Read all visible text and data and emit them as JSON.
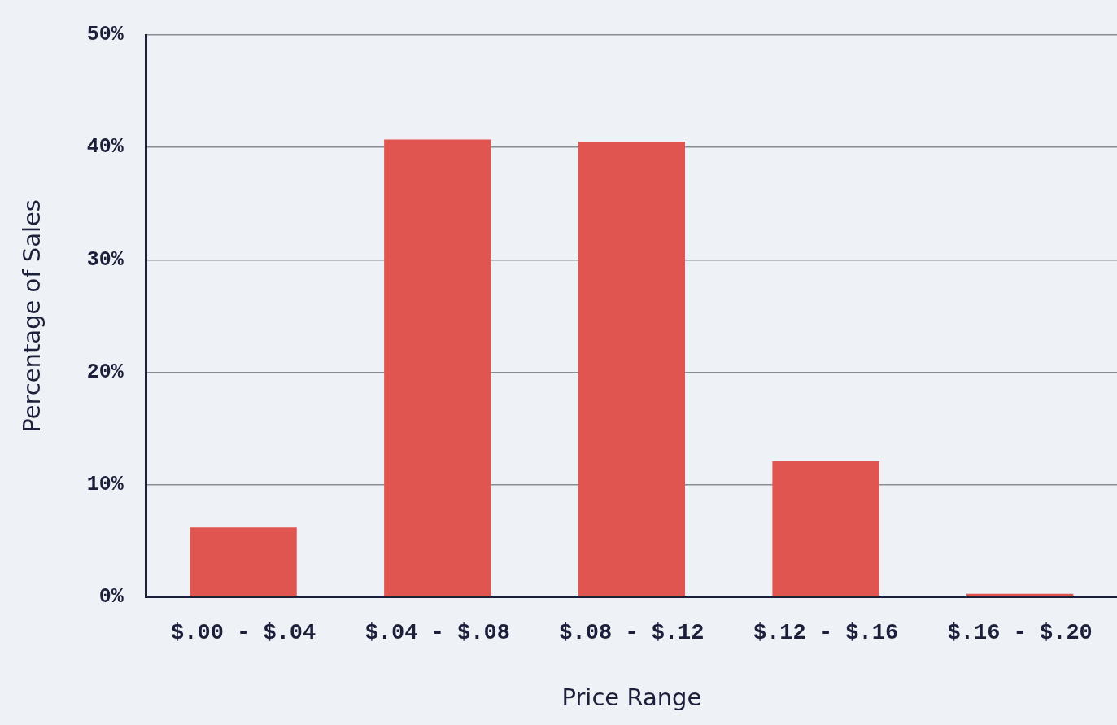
{
  "chart_data": {
    "type": "bar",
    "xlabel": "Price Range",
    "ylabel": "Percentage of Sales",
    "categories": [
      "$.00 - $.04",
      "$.04 - $.08",
      "$.08 - $.12",
      "$.12 - $.16",
      "$.16 - $.20"
    ],
    "values": [
      6.2,
      40.7,
      40.5,
      12.1,
      0.3
    ],
    "color": "#e05550",
    "ylim": [
      0,
      50
    ],
    "yticks": [
      {
        "value": 0,
        "label": "0%"
      },
      {
        "value": 10,
        "label": "10%"
      },
      {
        "value": 20,
        "label": "20%"
      },
      {
        "value": 30,
        "label": "30%"
      },
      {
        "value": 40,
        "label": "40%"
      },
      {
        "value": 50,
        "label": "50%"
      }
    ],
    "grid": "y",
    "legend": false
  }
}
